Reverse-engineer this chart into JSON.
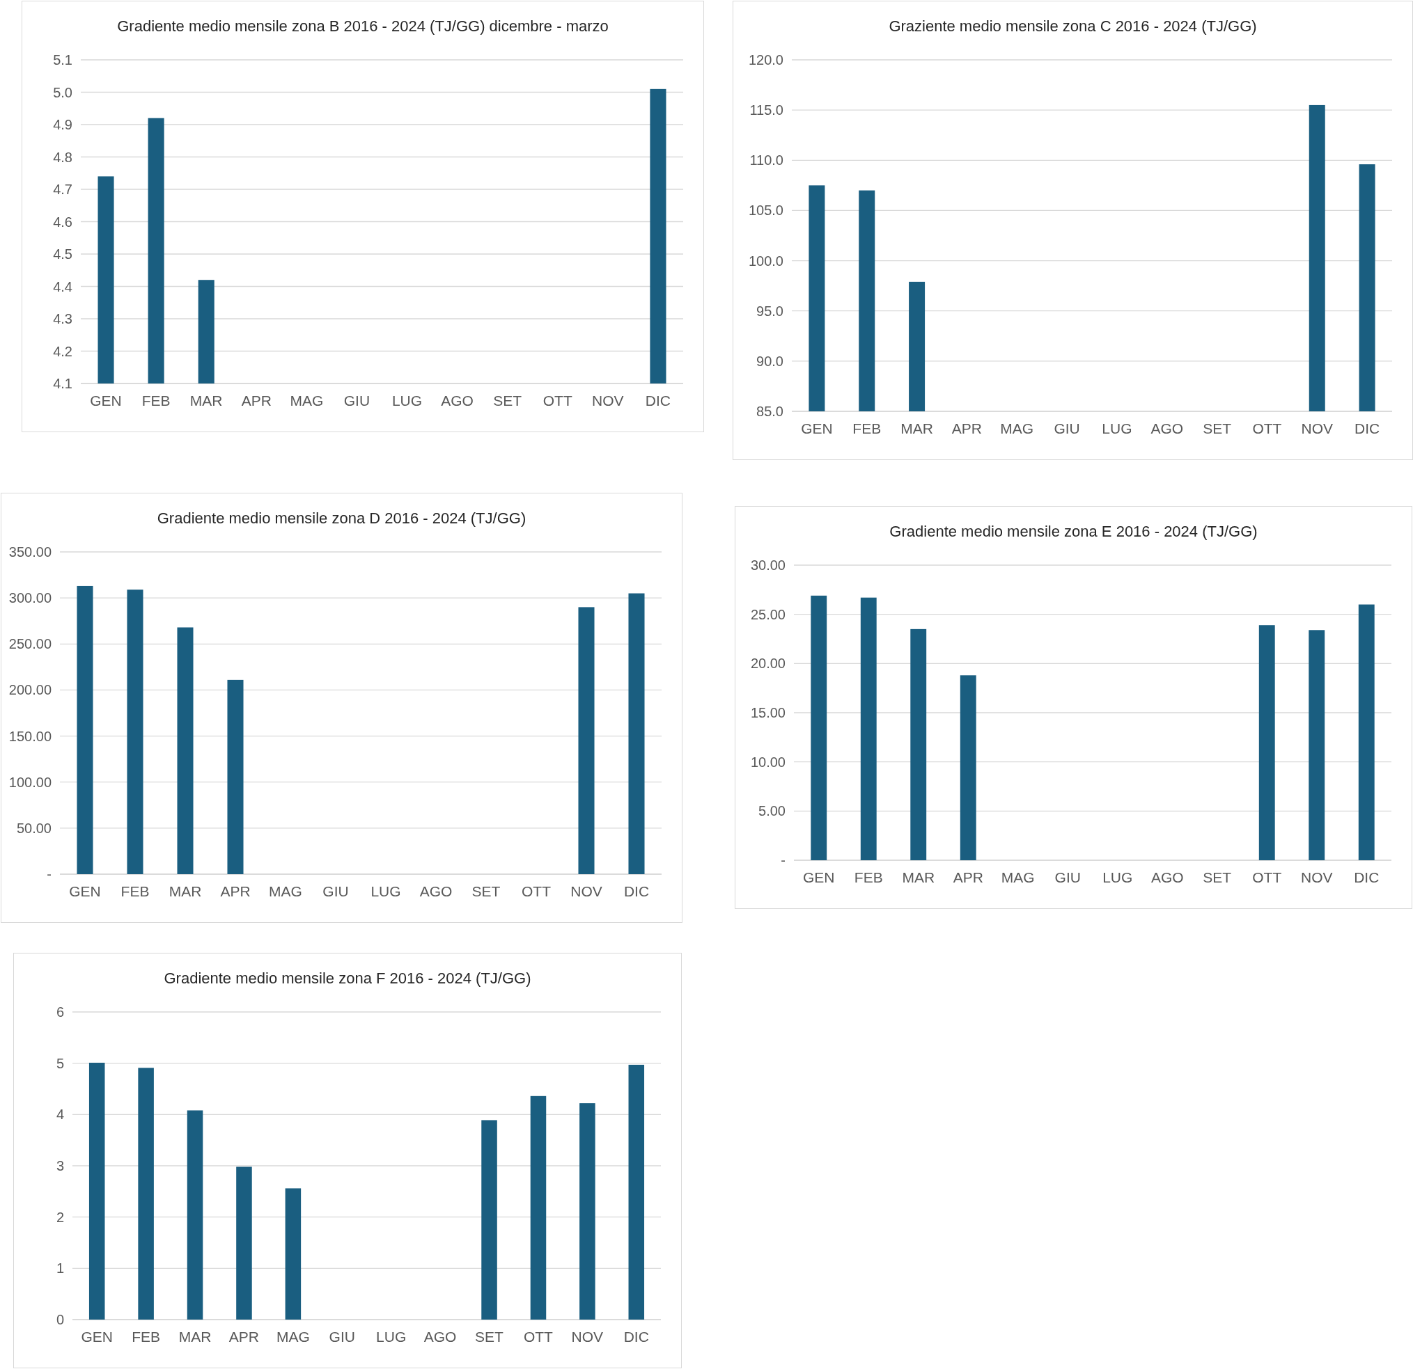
{
  "chart_data": [
    {
      "type": "bar",
      "title": "Gradiente medio mensile zona B 2016  - 2024   (TJ/GG) dicembre - marzo",
      "categories": [
        "GEN",
        "FEB",
        "MAR",
        "APR",
        "MAG",
        "GIU",
        "LUG",
        "AGO",
        "SET",
        "OTT",
        "NOV",
        "DIC"
      ],
      "values": [
        4.74,
        4.92,
        4.42,
        null,
        null,
        null,
        null,
        null,
        null,
        null,
        null,
        5.01
      ],
      "color": "#1a5e80",
      "ylim": [
        4.1,
        5.1
      ],
      "yticks": [
        {
          "value": 4.1,
          "label": "4.1"
        },
        {
          "value": 4.2,
          "label": "4.2"
        },
        {
          "value": 4.3,
          "label": "4.3"
        },
        {
          "value": 4.4,
          "label": "4.4"
        },
        {
          "value": 4.5,
          "label": "4.5"
        },
        {
          "value": 4.6,
          "label": "4.6"
        },
        {
          "value": 4.7,
          "label": "4.7"
        },
        {
          "value": 4.8,
          "label": "4.8"
        },
        {
          "value": 4.9,
          "label": "4.9"
        },
        {
          "value": 5.0,
          "label": "5.0"
        },
        {
          "value": 5.1,
          "label": "5.1"
        }
      ],
      "grid": "y"
    },
    {
      "type": "bar",
      "title": "Graziente medio mensile zona C 2016  - 2024   (TJ/GG)",
      "categories": [
        "GEN",
        "FEB",
        "MAR",
        "APR",
        "MAG",
        "GIU",
        "LUG",
        "AGO",
        "SET",
        "OTT",
        "NOV",
        "DIC"
      ],
      "values": [
        107.5,
        107.0,
        97.9,
        null,
        null,
        null,
        null,
        null,
        null,
        null,
        115.5,
        109.6
      ],
      "color": "#1a5e80",
      "ylim": [
        85,
        120
      ],
      "yticks": [
        {
          "value": 85,
          "label": "85.0"
        },
        {
          "value": 90,
          "label": "90.0"
        },
        {
          "value": 95,
          "label": "95.0"
        },
        {
          "value": 100,
          "label": "100.0"
        },
        {
          "value": 105,
          "label": "105.0"
        },
        {
          "value": 110,
          "label": "110.0"
        },
        {
          "value": 115,
          "label": "115.0"
        },
        {
          "value": 120,
          "label": "120.0"
        }
      ],
      "grid": "y"
    },
    {
      "type": "bar",
      "title": "Gradiente medio mensile zona D 2016  - 2024   (TJ/GG)",
      "categories": [
        "GEN",
        "FEB",
        "MAR",
        "APR",
        "MAG",
        "GIU",
        "LUG",
        "AGO",
        "SET",
        "OTT",
        "NOV",
        "DIC"
      ],
      "values": [
        313,
        309,
        268,
        211,
        null,
        null,
        null,
        null,
        null,
        null,
        290,
        305
      ],
      "color": "#1a5e80",
      "ylim": [
        0,
        350
      ],
      "yticks": [
        {
          "value": 0,
          "label": "-"
        },
        {
          "value": 50,
          "label": "50.00"
        },
        {
          "value": 100,
          "label": "100.00"
        },
        {
          "value": 150,
          "label": "150.00"
        },
        {
          "value": 200,
          "label": "200.00"
        },
        {
          "value": 250,
          "label": "250.00"
        },
        {
          "value": 300,
          "label": "300.00"
        },
        {
          "value": 350,
          "label": "350.00"
        }
      ],
      "grid": "y"
    },
    {
      "type": "bar",
      "title": "Gradiente medio mensile zona E 2016  - 2024   (TJ/GG)",
      "categories": [
        "GEN",
        "FEB",
        "MAR",
        "APR",
        "MAG",
        "GIU",
        "LUG",
        "AGO",
        "SET",
        "OTT",
        "NOV",
        "DIC"
      ],
      "values": [
        26.9,
        26.7,
        23.5,
        18.8,
        null,
        null,
        null,
        null,
        null,
        23.9,
        23.4,
        26.0
      ],
      "color": "#1a5e80",
      "ylim": [
        0,
        30
      ],
      "yticks": [
        {
          "value": 0,
          "label": "-"
        },
        {
          "value": 5,
          "label": "5.00"
        },
        {
          "value": 10,
          "label": "10.00"
        },
        {
          "value": 15,
          "label": "15.00"
        },
        {
          "value": 20,
          "label": "20.00"
        },
        {
          "value": 25,
          "label": "25.00"
        },
        {
          "value": 30,
          "label": "30.00"
        }
      ],
      "grid": "y"
    },
    {
      "type": "bar",
      "title": "Gradiente medio mensile zona F 2016  - 2024   (TJ/GG)",
      "categories": [
        "GEN",
        "FEB",
        "MAR",
        "APR",
        "MAG",
        "GIU",
        "LUG",
        "AGO",
        "SET",
        "OTT",
        "NOV",
        "DIC"
      ],
      "values": [
        5.01,
        4.91,
        4.08,
        2.98,
        2.56,
        null,
        null,
        null,
        3.89,
        4.36,
        4.22,
        4.97
      ],
      "color": "#1a5e80",
      "ylim": [
        0,
        6
      ],
      "yticks": [
        0,
        1,
        2,
        3,
        4,
        5,
        6
      ],
      "grid": "y"
    }
  ]
}
